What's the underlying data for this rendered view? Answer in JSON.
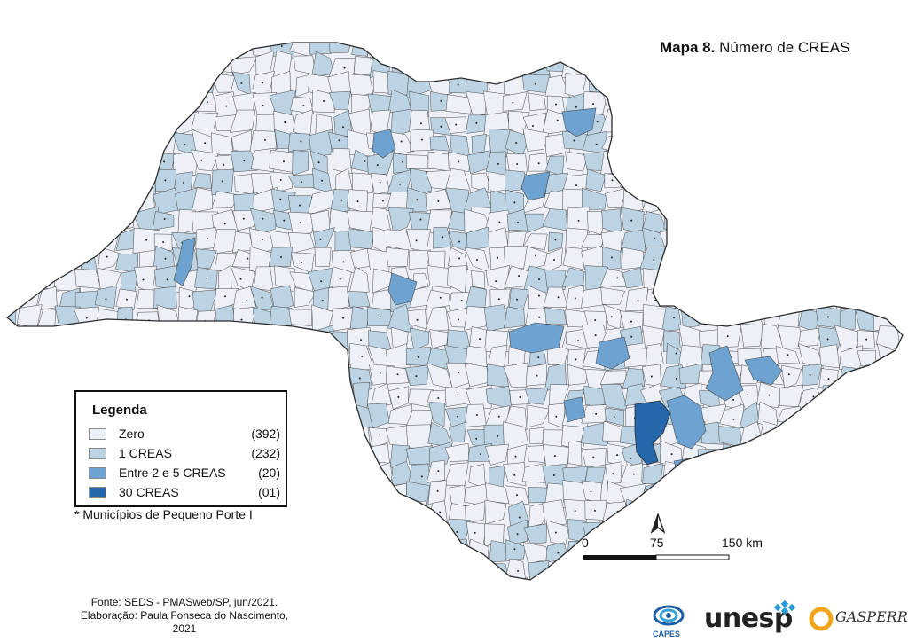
{
  "title": {
    "prefix": "Mapa 8.",
    "text": " Número de CREAS"
  },
  "legend": {
    "title": "Legenda",
    "items": [
      {
        "label": "Zero",
        "count": "(392)",
        "color": "#eef0f8"
      },
      {
        "label": "1 CREAS",
        "count": "(232)",
        "color": "#bcd3e3"
      },
      {
        "label": "Entre 2 e 5 CREAS",
        "count": "(20)",
        "color": "#6ea3d1"
      },
      {
        "label": "30 CREAS",
        "count": "(01)",
        "color": "#2467ad"
      }
    ]
  },
  "footnote": "* Municípios de Pequeno Porte I",
  "scale": {
    "start": "0",
    "mid": "75",
    "end": "150 km"
  },
  "north": "N",
  "source": {
    "line1": "Fonte: SEDS - PMASweb/SP, jun/2021.",
    "line2": "Elaboração: Paula Fonseca do Nascimento, 2021"
  },
  "logos": {
    "capes": "CAPES",
    "unesp": "unesp",
    "gasperr": "GASPERR"
  },
  "colors": {
    "zero": "#eef0f8",
    "one": "#bcd3e3",
    "two_to_five": "#6ea3d1",
    "thirty": "#2467ad",
    "border": "#2b2b2b"
  }
}
